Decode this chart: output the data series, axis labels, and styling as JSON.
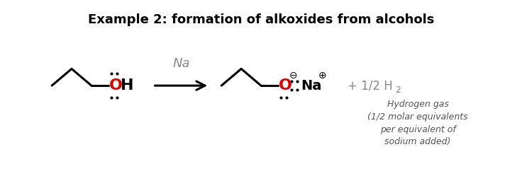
{
  "title": "Example 2: formation of alkoxides from alcohols",
  "title_fontsize": 13,
  "title_fontweight": "bold",
  "bg_color": "#ffffff",
  "figsize": [
    7.36,
    2.66
  ],
  "dpi": 100,
  "O_color": "#dd0000",
  "arrow_gray": "#888888",
  "note_gray": "#555555",
  "note_lines": [
    "Hydrogen gas",
    "(1/2 molar equivalents",
    "per equivalent of",
    "sodium added)"
  ],
  "note_fontsize": 9
}
